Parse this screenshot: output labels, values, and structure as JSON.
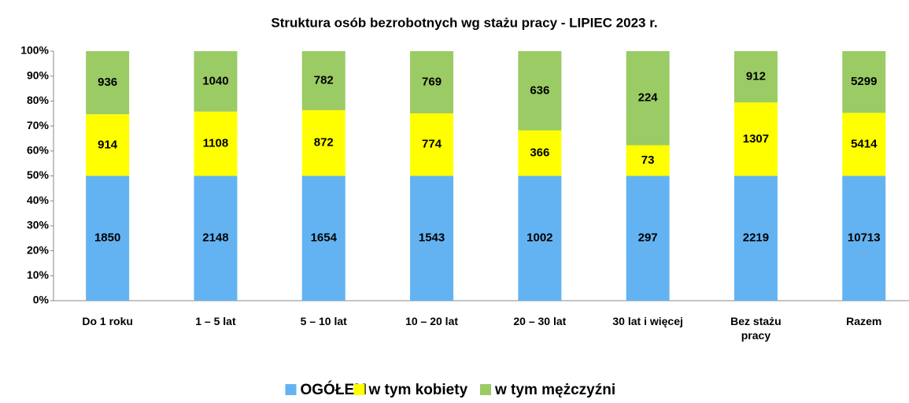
{
  "chart_data": {
    "type": "bar",
    "stacking": "percent",
    "title": "Struktura osób bezrobotnych wg stażu pracy - LIPIEC 2023 r.",
    "categories": [
      "Do 1 roku",
      "1 – 5 lat",
      "5 – 10 lat",
      "10 – 20 lat",
      "20 – 30 lat",
      "30 lat i więcej",
      "Bez stażu pracy",
      "Razem"
    ],
    "series": [
      {
        "name": "OGÓŁEM",
        "color": "#63b3f2",
        "values": [
          1850,
          2148,
          1654,
          1543,
          1002,
          297,
          2219,
          10713
        ]
      },
      {
        "name": "w tym kobiety",
        "color": "#ffff00",
        "values": [
          914,
          1108,
          872,
          774,
          366,
          73,
          1307,
          5414
        ]
      },
      {
        "name": "w tym mężczyźni",
        "color": "#9bcb65",
        "values": [
          936,
          1040,
          782,
          769,
          636,
          224,
          912,
          5299
        ]
      }
    ],
    "ylim": [
      0,
      100
    ],
    "yticks": [
      {
        "value": 0,
        "label": "0%"
      },
      {
        "value": 10,
        "label": "10%"
      },
      {
        "value": 20,
        "label": "20%"
      },
      {
        "value": 30,
        "label": "30%"
      },
      {
        "value": 40,
        "label": "40%"
      },
      {
        "value": 50,
        "label": "50%"
      },
      {
        "value": 60,
        "label": "60%"
      },
      {
        "value": 70,
        "label": "70%"
      },
      {
        "value": 80,
        "label": "80%"
      },
      {
        "value": 90,
        "label": "90%"
      },
      {
        "value": 100,
        "label": "100%"
      }
    ],
    "legend": "bottom"
  }
}
